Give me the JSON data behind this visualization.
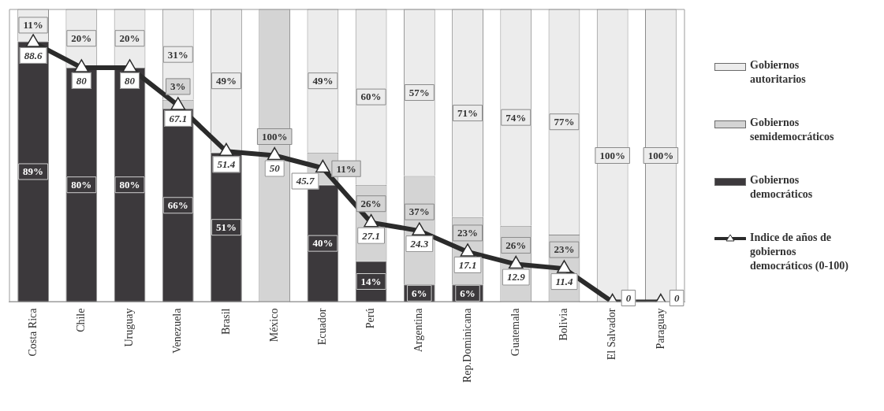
{
  "chart_data": {
    "type": "bar",
    "stacked": true,
    "legend": "right",
    "tick_labels": "x",
    "ylim": [
      0,
      100
    ],
    "categories": [
      "Costa Rica",
      "Chile",
      "Uruguay",
      "Venezuela",
      "Brasil",
      "México",
      "Ecuador",
      "Perú",
      "Argentina",
      "Rep.Dominicana",
      "Guatemala",
      "Bolivia",
      "El Salvador",
      "Paraguay"
    ],
    "series": [
      {
        "name": "Gobiernos democráticos",
        "color": "#3c393c",
        "values": [
          89,
          80,
          80,
          66,
          51,
          0,
          40,
          14,
          6,
          6,
          0,
          0,
          0,
          0
        ],
        "value_labels": [
          "89%",
          "80%",
          "80%",
          "66%",
          "51%",
          null,
          "40%",
          "14%",
          "6%",
          "6%",
          null,
          null,
          null,
          null
        ]
      },
      {
        "name": "Gobiernos semidemocráticos",
        "color": "#d4d4d4",
        "values": [
          0,
          0,
          0,
          3,
          0,
          100,
          11,
          26,
          37,
          23,
          26,
          23,
          0,
          0
        ],
        "value_labels": [
          null,
          null,
          null,
          "3%",
          null,
          "100%",
          "11%",
          "26%",
          "37%",
          "23%",
          "26%",
          "23%",
          null,
          null
        ]
      },
      {
        "name": "Gobiernos autoritarios",
        "color": "#ececec",
        "values": [
          11,
          20,
          20,
          31,
          49,
          0,
          49,
          60,
          57,
          71,
          74,
          77,
          100,
          100
        ],
        "value_labels": [
          "11%",
          "20%",
          "20%",
          "31%",
          "49%",
          null,
          "49%",
          "60%",
          "57%",
          "71%",
          "74%",
          "77%",
          "100%",
          "100%"
        ]
      },
      {
        "type": "line",
        "marker": "triangle",
        "name": "Indice de años de gobiernos democráticos (0-100)",
        "color": "#2b2b2b",
        "values": [
          88.6,
          80,
          80,
          67.1,
          51.4,
          50,
          45.7,
          27.1,
          24.3,
          17.1,
          12.9,
          11.4,
          0,
          0
        ],
        "value_labels": [
          "88.6",
          "80",
          "80",
          "67.1",
          "51.4",
          "50",
          "45.7",
          "27.1",
          "24.3",
          "17.1",
          "12.9",
          "11.4",
          "0",
          "0"
        ]
      }
    ]
  }
}
